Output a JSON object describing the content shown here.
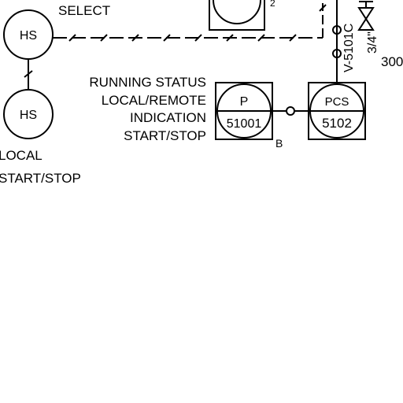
{
  "labels": {
    "select": "SELECT",
    "running_status": "RUNNING STATUS",
    "local_remote": "LOCAL/REMOTE",
    "indication": "INDICATION",
    "start_stop": "START/STOP",
    "local": "LOCAL",
    "local_start_stop": "START/STOP",
    "b_marker": "B",
    "small_mark": "2",
    "valve_tag": "V-5101C",
    "valve_size": "3/4\"",
    "partial_number": "300"
  },
  "instruments": {
    "hs_top": {
      "tag": "HS"
    },
    "hs_bottom": {
      "tag": "HS"
    },
    "p_box": {
      "letter": "P",
      "number": "51001"
    },
    "pcs_box": {
      "letter": "PCS",
      "number": "5102"
    }
  }
}
